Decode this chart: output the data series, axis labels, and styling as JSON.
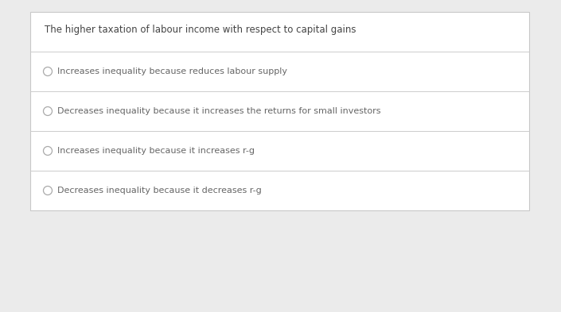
{
  "title": "The higher taxation of labour income with respect to capital gains",
  "options": [
    "Increases inequality because reduces labour supply",
    "Decreases inequality because it increases the returns for small investors",
    "Increases inequality because it increases r-g",
    "Decreases inequality because it decreases r-g"
  ],
  "bg_color": "#ebebeb",
  "box_color": "#ffffff",
  "border_color": "#c8c8c8",
  "title_color": "#444444",
  "option_color": "#666666",
  "divider_color": "#cccccc",
  "title_fontsize": 8.5,
  "option_fontsize": 8.0,
  "circle_color": "#aaaaaa"
}
